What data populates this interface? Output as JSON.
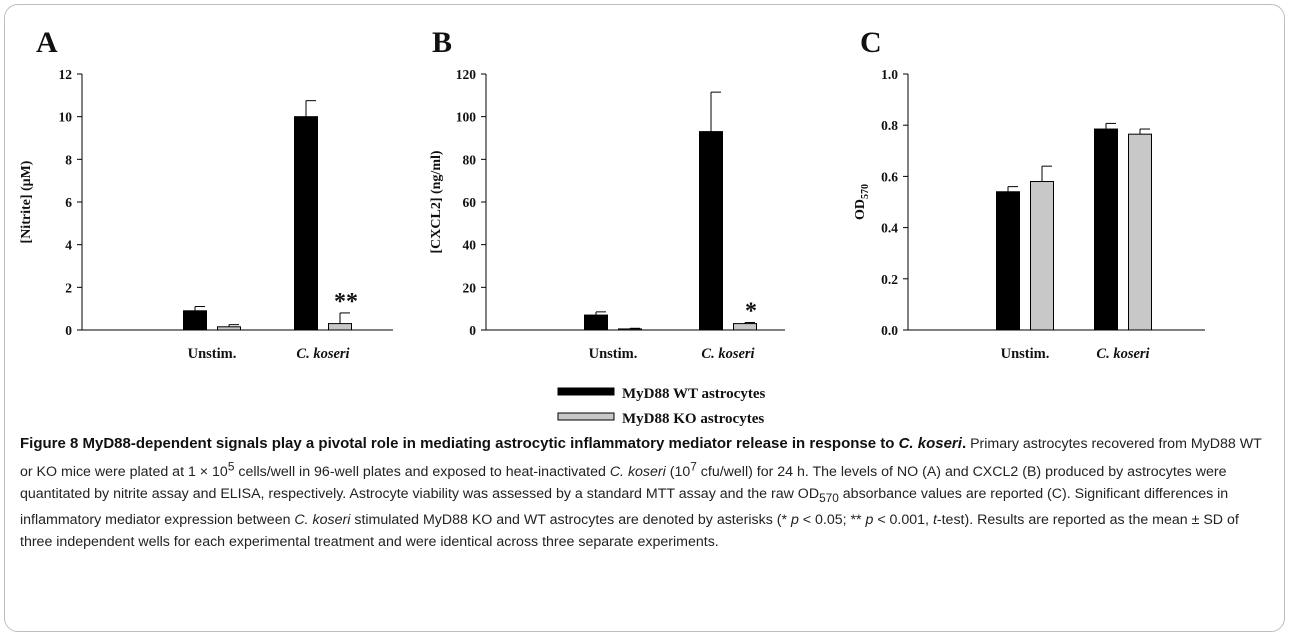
{
  "chart_data": [
    {
      "type": "bar",
      "panel_letter": "A",
      "ylabel": "[Nitrite] (μM)",
      "ylim": [
        0,
        12
      ],
      "yticks": [
        0,
        2,
        4,
        6,
        8,
        10,
        12
      ],
      "categories": [
        "Unstim.",
        "C. koseri"
      ],
      "series": [
        {
          "name": "MyD88 WT astrocytes",
          "color": "#000000",
          "values": [
            0.9,
            10.0
          ],
          "errors": [
            0.2,
            0.75
          ]
        },
        {
          "name": "MyD88 KO astrocytes",
          "color": "#c8c8c8",
          "values": [
            0.15,
            0.3
          ],
          "errors": [
            0.1,
            0.5
          ]
        }
      ],
      "annotations": [
        {
          "category": 1,
          "series": 1,
          "text": "**"
        }
      ]
    },
    {
      "type": "bar",
      "panel_letter": "B",
      "ylabel": "[CXCL2] (ng/ml)",
      "ylim": [
        0,
        120
      ],
      "yticks": [
        0,
        20,
        40,
        60,
        80,
        100,
        120
      ],
      "categories": [
        "Unstim.",
        "C. koseri"
      ],
      "series": [
        {
          "name": "MyD88 WT astrocytes",
          "color": "#000000",
          "values": [
            7.0,
            93.0
          ],
          "errors": [
            1.5,
            18.5
          ]
        },
        {
          "name": "MyD88 KO astrocytes",
          "color": "#c8c8c8",
          "values": [
            0.5,
            3.0
          ],
          "errors": [
            0.3,
            0.5
          ]
        }
      ],
      "annotations": [
        {
          "category": 1,
          "series": 1,
          "text": "*"
        }
      ]
    },
    {
      "type": "bar",
      "panel_letter": "C",
      "ylabel": "OD",
      "ylabel_sub": "570",
      "ylim": [
        0,
        1.0
      ],
      "yticks": [
        "0.0",
        "0.2",
        "0.4",
        "0.6",
        "0.8",
        "1.0"
      ],
      "categories": [
        "Unstim.",
        "C. koseri"
      ],
      "series": [
        {
          "name": "MyD88 WT astrocytes",
          "color": "#000000",
          "values": [
            0.54,
            0.785
          ],
          "errors": [
            0.02,
            0.022
          ]
        },
        {
          "name": "MyD88 KO astrocytes",
          "color": "#c8c8c8",
          "values": [
            0.58,
            0.765
          ],
          "errors": [
            0.06,
            0.02
          ]
        }
      ],
      "annotations": []
    }
  ],
  "legend": {
    "items": [
      {
        "label": "MyD88 WT astrocytes",
        "color": "#000000"
      },
      {
        "label": "MyD88 KO astrocytes",
        "color": "#c8c8c8"
      }
    ]
  },
  "caption": {
    "title": "Figure 8 MyD88-dependent signals play a pivotal role in mediating astrocytic inflammatory mediator release in response to ",
    "title_italic": "C. koseri",
    "title_end": ".",
    "p1": "Primary astrocytes recovered from MyD88 WT or KO mice were plated at 1 × 10",
    "p1_sup": "5",
    "p2": " cells/well in 96-well plates and exposed to heat-inactivated ",
    "p2_italic": "C. koseri",
    "p3": " (10",
    "p3_sup": "7",
    "p4": " cfu/well) for 24 h. The levels of NO (A) and CXCL2 (B) produced by astrocytes were quantitated by nitrite assay and ELISA, respectively. Astrocyte viability was assessed by a standard MTT assay and the raw OD",
    "p4_sub": "570",
    "p5": " absorbance values are reported (C). Significant differences in inflammatory mediator expression between ",
    "p5_italic": "C. koseri",
    "p6": " stimulated MyD88 KO and WT astrocytes are denoted by asterisks (* ",
    "p6_italic": "p",
    "p7": " < 0.05; ** ",
    "p7_italic": "p",
    "p8": " < 0.001, ",
    "p8_italic": "t",
    "p9": "-test). Results are reported as the mean ± SD of three independent wells for each experimental treatment and were identical across three separate experiments."
  }
}
